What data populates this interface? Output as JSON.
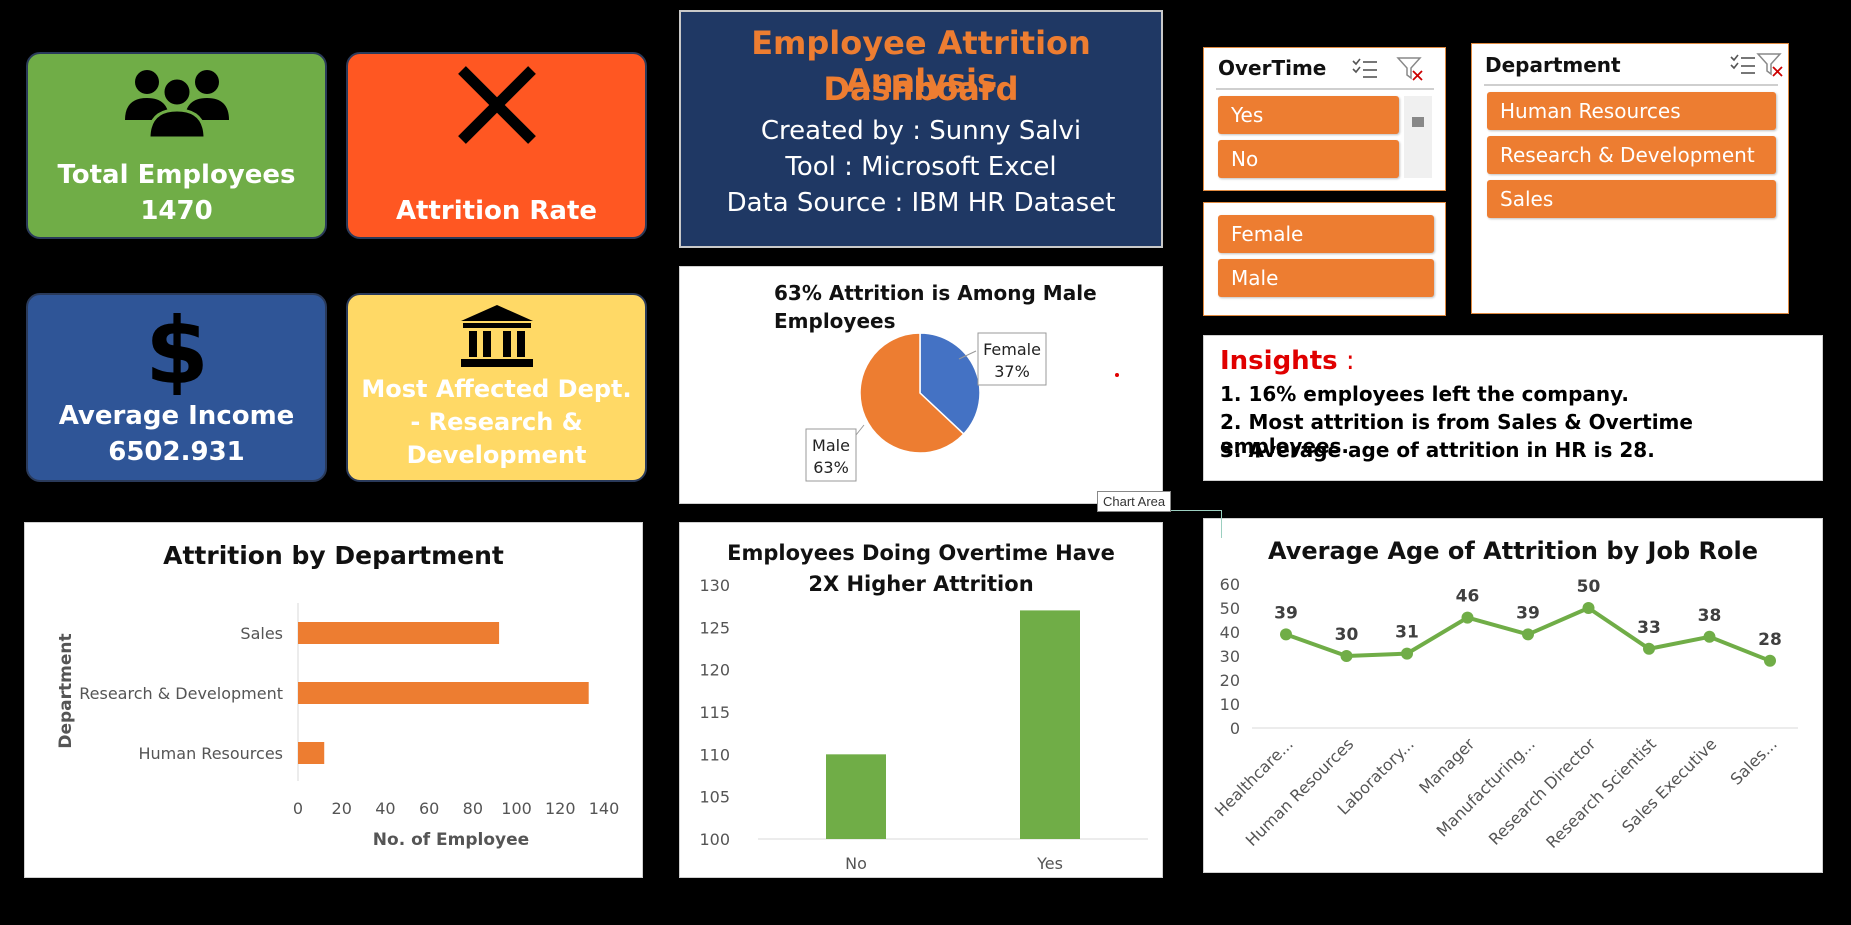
{
  "colors": {
    "background": "#000000",
    "kpi_green": "#70ad47",
    "kpi_red": "#ff5722",
    "kpi_blue": "#2f5597",
    "kpi_yellow": "#ffd966",
    "title_panel": "#1f3864",
    "accent_orange": "#ed7d31",
    "pie_blue": "#4472c4",
    "bar_green": "#70ad47",
    "insights_red": "#e00000"
  },
  "kpis": {
    "total_employees": {
      "label": "Total Employees",
      "value": "1470",
      "icon": "people-icon"
    },
    "attrition_rate": {
      "label": "Attrition Rate",
      "icon": "x-icon"
    },
    "average_income": {
      "label": "Average Income",
      "value": "6502.931",
      "icon": "dollar-icon"
    },
    "most_affected": {
      "label_lines": [
        "Most Affected Dept.",
        "- Research &",
        "Development"
      ],
      "icon": "bank-icon"
    }
  },
  "header": {
    "title_lines": [
      "Employee Attrition Analysis",
      "Dashboard"
    ],
    "created_by": "Created by : Sunny Salvi",
    "tool": "Tool : Microsoft Excel",
    "data_source": "Data Source : IBM HR Dataset"
  },
  "slicers": {
    "overtime": {
      "title": "OverTime",
      "items": [
        "Yes",
        "No"
      ]
    },
    "gender": {
      "items": [
        "Female",
        "Male"
      ]
    },
    "department": {
      "title": "Department",
      "items": [
        "Human Resources",
        "Research & Development",
        "Sales"
      ]
    }
  },
  "insights": {
    "title": "Insights",
    "colon": " :",
    "lines": [
      "1. 16% employees left the company.",
      "2. Most attrition is from Sales & Overtime employees.",
      "3. Average age of attrition in HR is 28."
    ]
  },
  "tooltip": "Chart Area",
  "chart_data": [
    {
      "type": "pie",
      "title_lines": [
        "63% Attrition is Among Male",
        "Employees"
      ],
      "slices": [
        {
          "label": "Female",
          "value": 37,
          "pct_label": "37%",
          "color": "#4472c4"
        },
        {
          "label": "Male",
          "value": 63,
          "pct_label": "63%",
          "color": "#ed7d31"
        }
      ]
    },
    {
      "type": "bar",
      "orientation": "horizontal",
      "title": "Attrition by Department",
      "ylabel": "Department",
      "xlabel": "No. of Employee",
      "categories": [
        "Sales",
        "Research & Development",
        "Human Resources"
      ],
      "values": [
        92,
        133,
        12
      ],
      "xlim": [
        0,
        140
      ],
      "ticks": [
        0,
        20,
        40,
        60,
        80,
        100,
        120,
        140
      ],
      "color": "#ed7d31"
    },
    {
      "type": "bar",
      "title_lines": [
        "Employees Doing Overtime Have",
        "2X Higher Attrition"
      ],
      "categories": [
        "No",
        "Yes"
      ],
      "values": [
        110,
        127
      ],
      "ylim": [
        100,
        130
      ],
      "ticks": [
        100,
        105,
        110,
        115,
        120,
        125,
        130
      ],
      "color": "#70ad47"
    },
    {
      "type": "line",
      "title": "Average Age of Attrition by Job Role",
      "categories": [
        "Healthcare...",
        "Human Resources",
        "Laboratory...",
        "Manager",
        "Manufacturing...",
        "Research Director",
        "Research Scientist",
        "Sales Executive",
        "Sales..."
      ],
      "values": [
        39,
        30,
        31,
        46,
        39,
        50,
        33,
        38,
        28
      ],
      "ylim": [
        0,
        60
      ],
      "ticks": [
        0,
        10,
        20,
        30,
        40,
        50,
        60
      ],
      "color": "#70ad47"
    }
  ]
}
